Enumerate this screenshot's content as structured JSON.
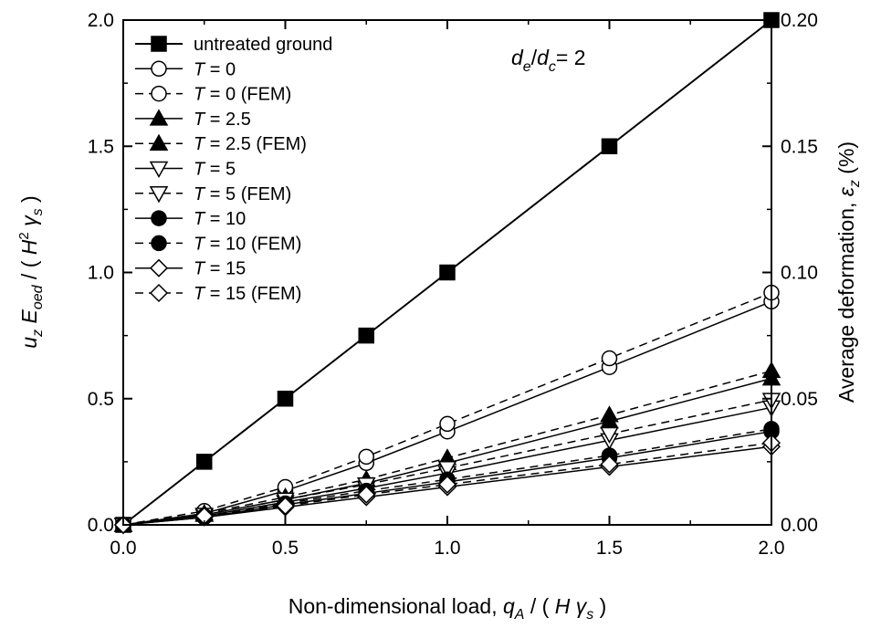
{
  "chart_data": {
    "type": "line",
    "xlabel": {
      "main": "Non-dimensional load, ",
      "sym": "q",
      "sub": "A",
      "after": " / ( ",
      "var": "H",
      "sym2": " γ",
      "sub2": "s",
      "close": " )"
    },
    "ylabel_left": {
      "sym": "u",
      "sub": "z",
      "sym2": " E",
      "sub2": "oed",
      "mid": " / ( ",
      "var": "H",
      "sup": "2",
      "sym3": " γ",
      "sub3": "s",
      "close": " )"
    },
    "ylabel_right": {
      "main": "Average deformation, ",
      "sym": "ε",
      "sub": "z",
      "close": " (%)"
    },
    "annotation": {
      "d1": "d",
      "sub1": "e",
      "slash": "/",
      "d2": "d",
      "sub2": "c",
      "value": "= 2"
    },
    "xlim": [
      0,
      2
    ],
    "ylim_left": [
      0,
      2
    ],
    "ylim_right": [
      0,
      0.2
    ],
    "x_ticks": [
      "0.0",
      "0.5",
      "1.0",
      "1.5",
      "2.0"
    ],
    "y_ticks_left": [
      "0.0",
      "0.5",
      "1.0",
      "1.5",
      "2.0"
    ],
    "y_ticks_right": [
      "0.00",
      "0.05",
      "0.10",
      "0.15",
      "0.20"
    ],
    "x": [
      0,
      0.25,
      0.5,
      0.75,
      1.0,
      1.5,
      2.0
    ],
    "legend_position": "top-left",
    "series": [
      {
        "name": "untreated ground",
        "italic_T": false,
        "marker": "square",
        "fill": "filled",
        "dash": "solid",
        "values": [
          0,
          0.25,
          0.5,
          0.75,
          1.0,
          1.5,
          2.0
        ]
      },
      {
        "name": " = 0",
        "italic_T": true,
        "marker": "circle",
        "fill": "open",
        "dash": "solid",
        "values": [
          0,
          0.045,
          0.135,
          0.245,
          0.37,
          0.625,
          0.885
        ]
      },
      {
        "name": " = 0 (FEM)",
        "italic_T": true,
        "marker": "circle",
        "fill": "open",
        "dash": "dashed",
        "values": [
          0,
          0.055,
          0.15,
          0.27,
          0.4,
          0.66,
          0.92
        ]
      },
      {
        "name": " = 2.5",
        "italic_T": true,
        "marker": "triangle-up",
        "fill": "filled",
        "dash": "solid",
        "values": [
          0,
          0.04,
          0.1,
          0.165,
          0.245,
          0.41,
          0.58
        ]
      },
      {
        "name": " = 2.5 (FEM)",
        "italic_T": true,
        "marker": "triangle-up",
        "fill": "filled",
        "dash": "dashed",
        "values": [
          0,
          0.045,
          0.11,
          0.18,
          0.265,
          0.435,
          0.61
        ]
      },
      {
        "name": " = 5",
        "italic_T": true,
        "marker": "triangle-down",
        "fill": "open",
        "dash": "solid",
        "values": [
          0,
          0.035,
          0.09,
          0.145,
          0.205,
          0.335,
          0.465
        ]
      },
      {
        "name": " = 5 (FEM)",
        "italic_T": true,
        "marker": "triangle-down",
        "fill": "open",
        "dash": "dashed",
        "values": [
          0,
          0.04,
          0.1,
          0.16,
          0.225,
          0.36,
          0.495
        ]
      },
      {
        "name": " = 10",
        "italic_T": true,
        "marker": "circle",
        "fill": "filled",
        "dash": "solid",
        "values": [
          0,
          0.03,
          0.08,
          0.125,
          0.17,
          0.265,
          0.37
        ]
      },
      {
        "name": " = 10 (FEM)",
        "italic_T": true,
        "marker": "circle",
        "fill": "filled",
        "dash": "dashed",
        "values": [
          0,
          0.035,
          0.085,
          0.135,
          0.18,
          0.275,
          0.38
        ]
      },
      {
        "name": " = 15",
        "italic_T": true,
        "marker": "diamond",
        "fill": "open",
        "dash": "solid",
        "values": [
          0,
          0.03,
          0.07,
          0.11,
          0.15,
          0.23,
          0.31
        ]
      },
      {
        "name": " = 15 (FEM)",
        "italic_T": true,
        "marker": "diamond",
        "fill": "open",
        "dash": "dashed",
        "values": [
          0,
          0.035,
          0.075,
          0.12,
          0.16,
          0.24,
          0.325
        ]
      }
    ],
    "legend_T": "T"
  }
}
